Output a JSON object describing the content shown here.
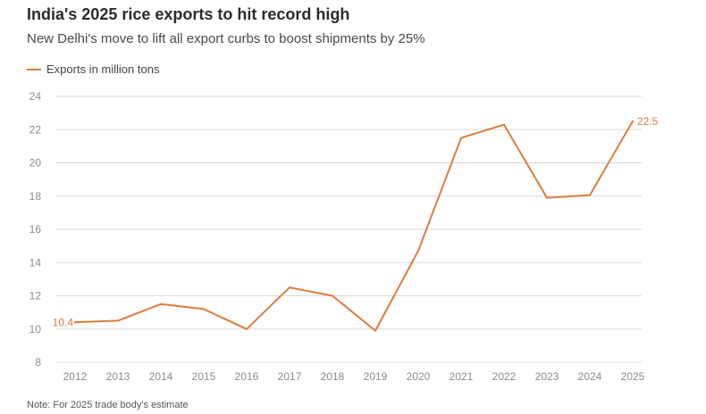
{
  "header": {
    "title": "India's 2025 rice exports to hit record high",
    "subtitle": "New Delhi's move to lift all export curbs to boost shipments by 25%"
  },
  "note": "Note: For 2025 trade body's estimate",
  "colors": {
    "series": "#e07a3c",
    "grid": "#d9d9d9",
    "tick_text": "#8a8a8a"
  },
  "chart_data": {
    "type": "line",
    "title": "India's 2025 rice exports to hit record high",
    "subtitle": "New Delhi's move to lift all export curbs to boost shipments by 25%",
    "xlabel": "",
    "ylabel": "",
    "x": [
      "2012",
      "2013",
      "2014",
      "2015",
      "2016",
      "2017",
      "2018",
      "2019",
      "2020",
      "2021",
      "2022",
      "2023",
      "2024",
      "2025"
    ],
    "y_ticks": [
      8,
      10,
      12,
      14,
      16,
      18,
      20,
      22,
      24
    ],
    "ylim": [
      8,
      24
    ],
    "grid": true,
    "legend_position": "top-left",
    "series": [
      {
        "name": "Exports in million tons",
        "values": [
          10.4,
          10.5,
          11.5,
          11.2,
          10.0,
          12.5,
          12.0,
          9.9,
          14.7,
          21.5,
          22.3,
          17.9,
          18.05,
          22.5
        ]
      }
    ],
    "annotations": [
      {
        "x": "2012",
        "label": "10.4"
      },
      {
        "x": "2025",
        "label": "22.5"
      }
    ]
  }
}
